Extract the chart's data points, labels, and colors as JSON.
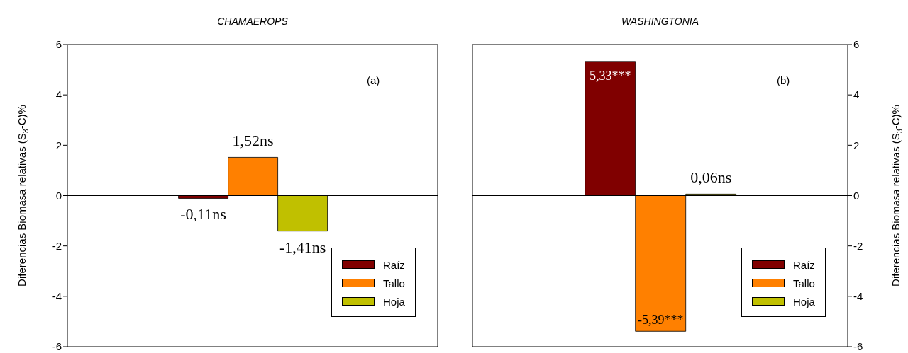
{
  "chart_data": [
    {
      "type": "bar",
      "title": "CHAMAEROPS",
      "ylabel": "Diferencias Biomasa relativas (S$_{3}$-C)%",
      "categories": [
        null
      ],
      "series": [
        {
          "name": "Raíz",
          "color": "#800000",
          "values": [
            -0.11
          ],
          "value_labels": [
            "-0,11ns"
          ]
        },
        {
          "name": "Tallo",
          "color": "#ff8000",
          "values": [
            1.52
          ],
          "value_labels": [
            "1,52ns"
          ]
        },
        {
          "name": "Hoja",
          "color": "#c0c000",
          "values": [
            -1.41
          ],
          "value_labels": [
            "-1,41ns"
          ]
        }
      ],
      "ylim": [
        -6,
        6
      ],
      "yticks": [
        -6,
        -4,
        -2,
        0,
        2,
        4,
        6
      ],
      "ref_lines": [
        {
          "axis": "y",
          "value": 0
        }
      ],
      "annotations": [
        "(a)"
      ],
      "legend": "bottom right"
    },
    {
      "type": "bar",
      "title": "WASHINGTONIA",
      "ylabel": "Diferencias Biomasa relativas (S$_{3}$-C)%",
      "categories": [
        null
      ],
      "series": [
        {
          "name": "Raíz",
          "color": "#800000",
          "values": [
            5.33
          ],
          "value_labels": [
            "5,33***"
          ]
        },
        {
          "name": "Tallo",
          "color": "#ff8000",
          "values": [
            -5.39
          ],
          "value_labels": [
            "-5,39***"
          ]
        },
        {
          "name": "Hoja",
          "color": "#c0c000",
          "values": [
            0.06
          ],
          "value_labels": [
            "0,06ns"
          ]
        }
      ],
      "ylim": [
        -6,
        6
      ],
      "yticks": [
        -6,
        -4,
        -2,
        0,
        2,
        4,
        6
      ],
      "ref_lines": [
        {
          "axis": "y",
          "value": 0
        }
      ],
      "annotations": [
        "(b)"
      ],
      "legend": "bottom right"
    }
  ]
}
